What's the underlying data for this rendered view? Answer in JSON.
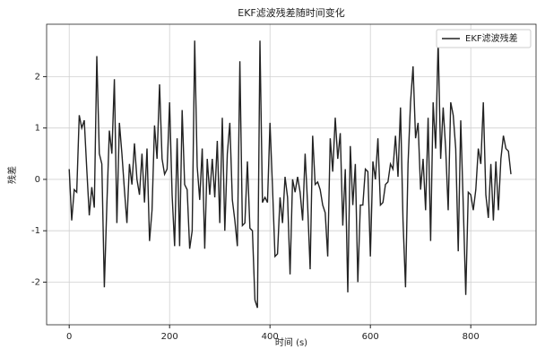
{
  "chart_data": {
    "type": "line",
    "title": "EKF滤波残差随时间变化",
    "xlabel": "时间 (s)",
    "ylabel": "残差",
    "x": [
      0,
      5,
      10,
      15,
      20,
      25,
      30,
      35,
      40,
      45,
      50,
      55,
      60,
      65,
      70,
      75,
      80,
      85,
      90,
      95,
      100,
      105,
      110,
      115,
      120,
      125,
      130,
      135,
      140,
      145,
      150,
      155,
      160,
      165,
      170,
      175,
      180,
      185,
      190,
      195,
      200,
      205,
      210,
      215,
      220,
      225,
      230,
      235,
      240,
      245,
      250,
      255,
      260,
      265,
      270,
      275,
      280,
      285,
      290,
      295,
      300,
      305,
      310,
      315,
      320,
      325,
      330,
      335,
      340,
      345,
      350,
      355,
      360,
      365,
      370,
      375,
      380,
      385,
      390,
      395,
      400,
      405,
      410,
      415,
      420,
      425,
      430,
      435,
      440,
      445,
      450,
      455,
      460,
      465,
      470,
      475,
      480,
      485,
      490,
      495,
      500,
      505,
      510,
      515,
      520,
      525,
      530,
      535,
      540,
      545,
      550,
      555,
      560,
      565,
      570,
      575,
      580,
      585,
      590,
      595,
      600,
      605,
      610,
      615,
      620,
      625,
      630,
      635,
      640,
      645,
      650,
      655,
      660,
      665,
      670,
      675,
      680,
      685,
      690,
      695,
      700,
      705,
      710,
      715,
      720,
      725,
      730,
      735,
      740,
      745,
      750,
      755,
      760,
      765,
      770,
      775,
      780,
      785,
      790,
      795,
      800,
      805,
      810,
      815,
      820,
      825,
      830,
      835,
      840,
      845,
      850,
      855,
      860,
      865,
      870,
      875,
      880
    ],
    "series": [
      {
        "name": "EKF滤波残差",
        "color": "#222222",
        "values": [
          0.2,
          -0.8,
          -0.2,
          -0.25,
          1.25,
          1.0,
          1.15,
          0.2,
          -0.7,
          -0.15,
          -0.55,
          2.4,
          0.5,
          0.3,
          -2.1,
          -0.5,
          0.95,
          0.5,
          1.95,
          -0.85,
          1.1,
          0.5,
          -0.2,
          -0.85,
          0.3,
          -0.1,
          0.7,
          0.0,
          -0.3,
          0.5,
          -0.45,
          0.6,
          -1.2,
          -0.6,
          1.05,
          0.4,
          1.85,
          0.4,
          0.1,
          0.2,
          1.5,
          -0.3,
          -1.3,
          0.8,
          -1.3,
          1.35,
          -0.1,
          -0.2,
          -1.35,
          -1.0,
          2.7,
          0.25,
          -0.4,
          0.6,
          -1.35,
          0.4,
          -0.3,
          0.4,
          -0.35,
          0.75,
          -0.85,
          1.2,
          -1.0,
          0.5,
          1.1,
          -0.4,
          -0.8,
          -1.3,
          2.3,
          -0.9,
          -0.85,
          0.35,
          -0.95,
          -1.0,
          -2.35,
          -2.5,
          2.7,
          -0.45,
          -0.35,
          -0.45,
          1.1,
          -0.15,
          -1.5,
          -1.45,
          -0.35,
          -0.85,
          0.05,
          -0.35,
          -1.85,
          0.0,
          -0.25,
          0.05,
          -0.25,
          -0.8,
          0.5,
          -0.5,
          -1.75,
          0.85,
          -0.1,
          -0.05,
          -0.2,
          -0.5,
          -0.65,
          -1.5,
          0.8,
          0.15,
          1.2,
          0.4,
          0.9,
          -0.9,
          0.2,
          -2.2,
          0.65,
          -0.5,
          0.3,
          -2.0,
          -0.5,
          -0.5,
          0.2,
          0.15,
          -1.5,
          0.35,
          0.0,
          0.8,
          -0.5,
          -0.45,
          -0.1,
          -0.05,
          0.3,
          0.2,
          0.85,
          0.05,
          1.4,
          -0.8,
          -2.1,
          0.3,
          1.5,
          2.2,
          0.8,
          1.1,
          -0.2,
          0.4,
          -0.6,
          1.2,
          -1.2,
          1.5,
          0.6,
          2.7,
          0.4,
          1.4,
          0.6,
          -0.6,
          1.5,
          1.25,
          0.6,
          -1.4,
          1.15,
          -0.5,
          -2.25,
          -0.25,
          -0.3,
          -0.6,
          -0.2,
          0.6,
          0.3,
          1.5,
          -0.3,
          -0.75,
          0.3,
          -0.8,
          0.35,
          -0.6,
          0.4,
          0.85,
          0.6,
          0.55,
          0.1
        ]
      }
    ],
    "xlim": [
      -45,
      930
    ],
    "ylim": [
      -2.83,
      3.02
    ],
    "xticks": [
      0,
      200,
      400,
      600,
      800
    ],
    "yticks": [
      -2,
      -1,
      0,
      1,
      2
    ],
    "grid": true,
    "legend": "upper right"
  }
}
